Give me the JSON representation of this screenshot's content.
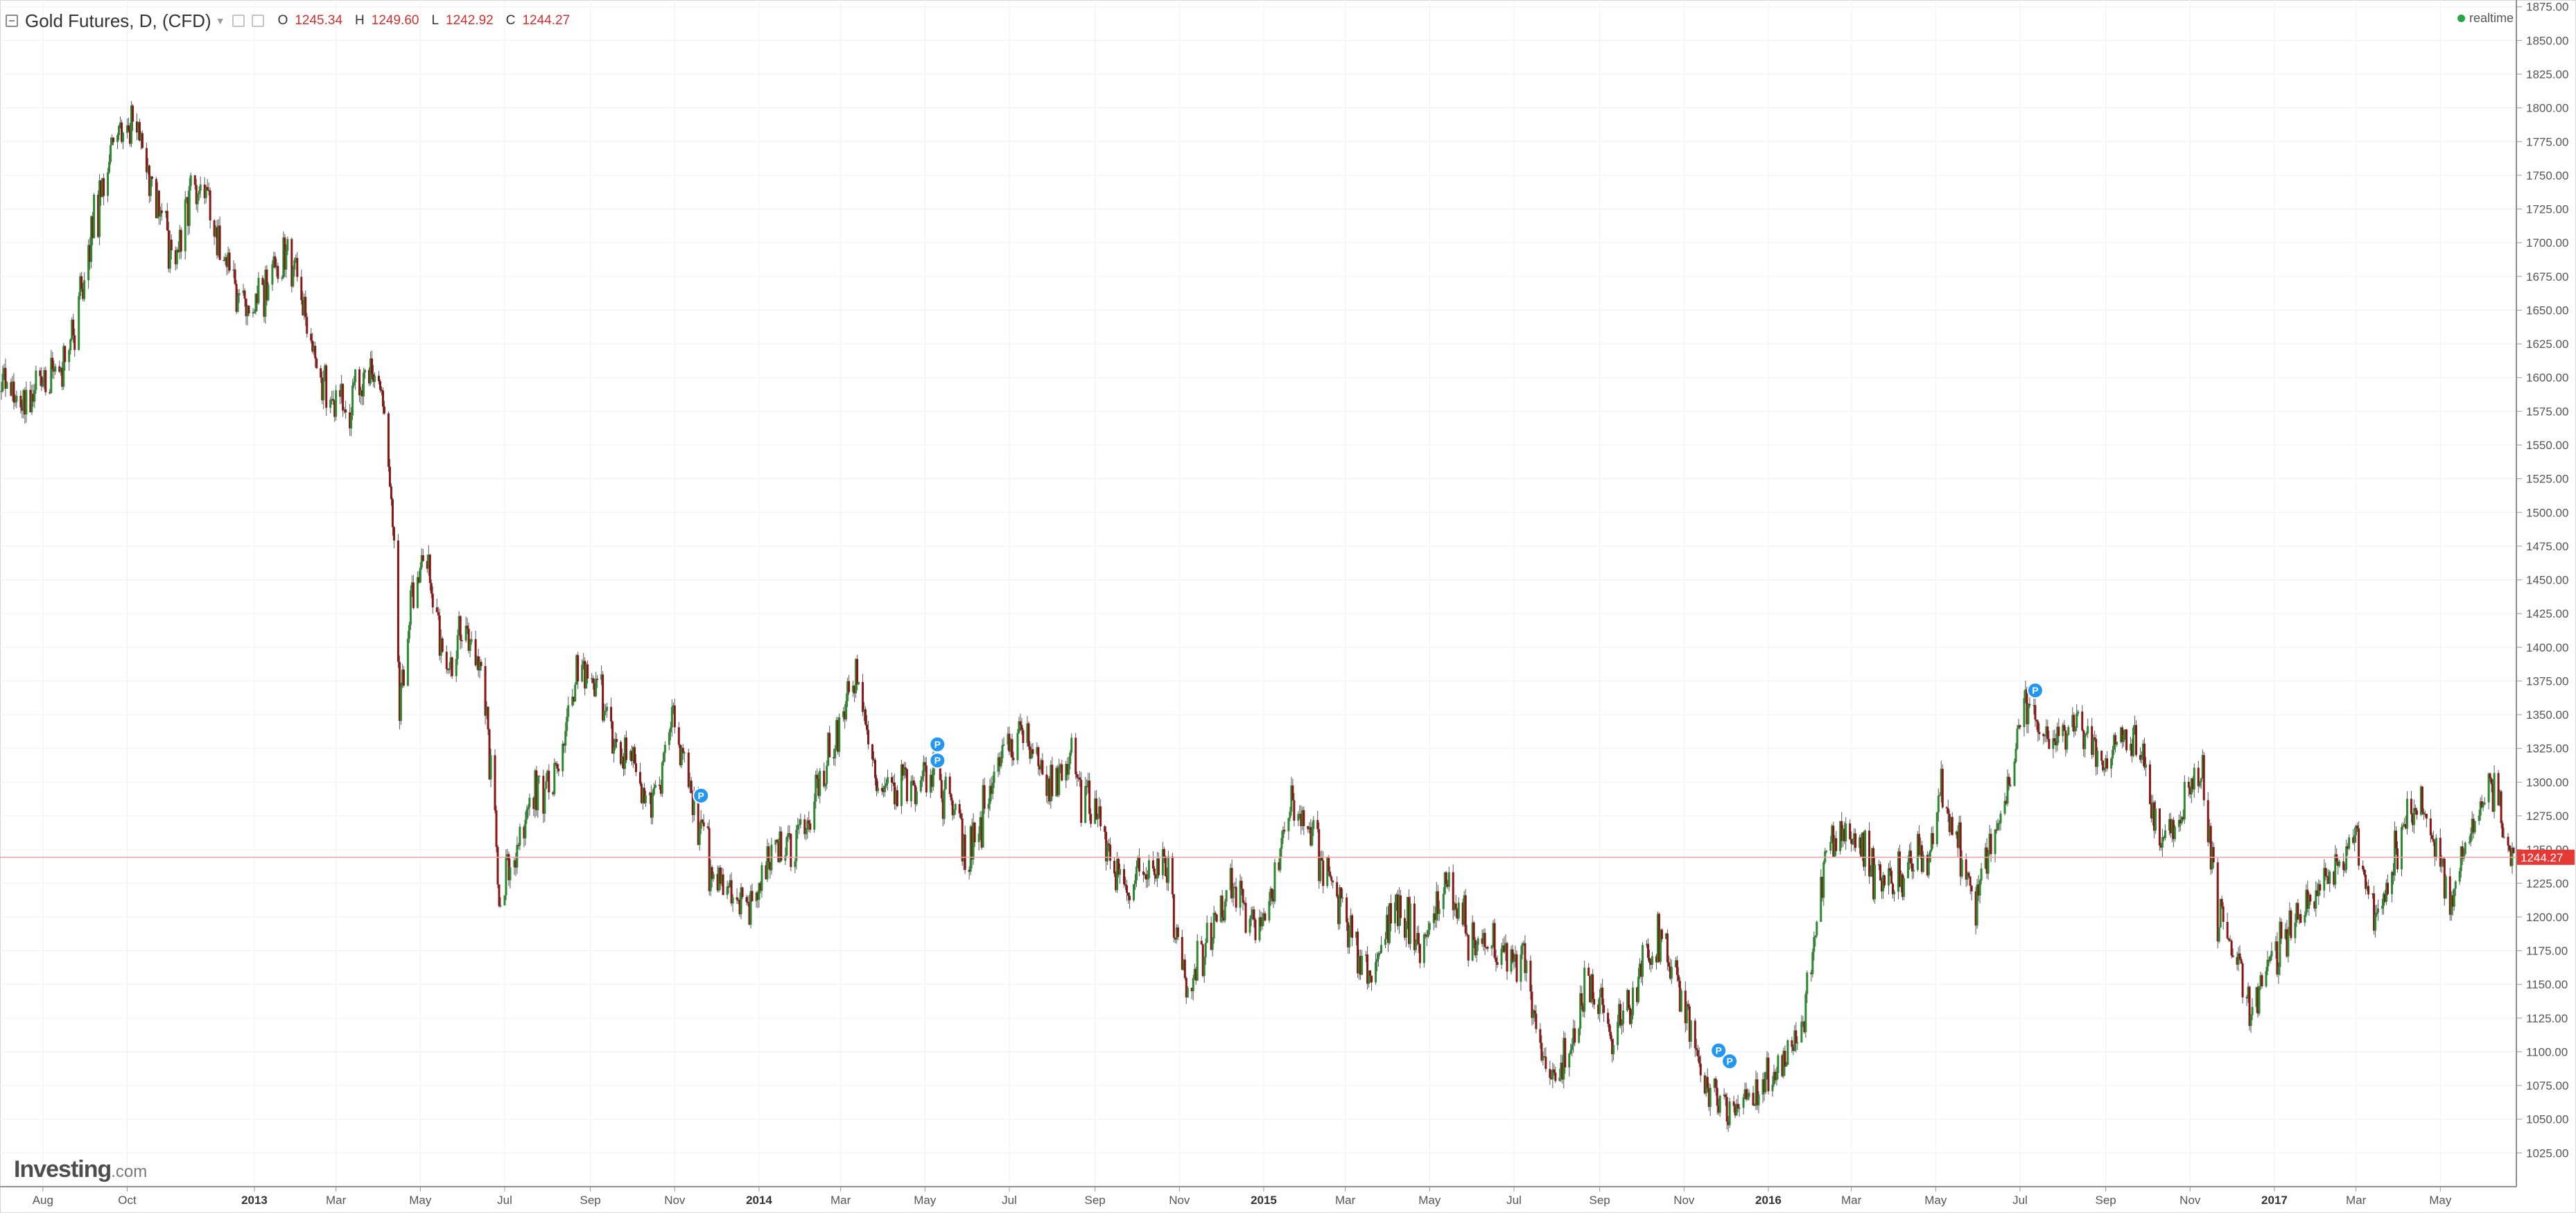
{
  "header": {
    "title": "Gold Futures, D, (CFD)",
    "ohlc": [
      {
        "key": "O",
        "value": "1245.34"
      },
      {
        "key": "H",
        "value": "1249.60"
      },
      {
        "key": "L",
        "value": "1242.92"
      },
      {
        "key": "C",
        "value": "1244.27"
      }
    ],
    "realtime_label": "realtime"
  },
  "branding": {
    "logo_main": "Investing",
    "logo_suffix": ".com"
  },
  "colors": {
    "up": "#2a8a2e",
    "down": "#8b1414",
    "grid": "#f0f0f0",
    "price_line": "#f2a0a0",
    "price_tag": "#e53935",
    "marker": "#2196f3",
    "realtime_dot": "#27a644"
  },
  "chart_data": {
    "type": "candlestick",
    "title": "Gold Futures, D, (CFD)",
    "y_axis": {
      "position": "right",
      "range": [
        1000,
        1880
      ],
      "ticks": [
        "1025.00",
        "1050.00",
        "1075.00",
        "1100.00",
        "1125.00",
        "1150.00",
        "1175.00",
        "1200.00",
        "1225.00",
        "1250.00",
        "1275.00",
        "1300.00",
        "1325.00",
        "1350.00",
        "1375.00",
        "1400.00",
        "1425.00",
        "1450.00",
        "1475.00",
        "1500.00",
        "1525.00",
        "1550.00",
        "1575.00",
        "1600.00",
        "1625.00",
        "1650.00",
        "1675.00",
        "1700.00",
        "1725.00",
        "1750.00",
        "1775.00",
        "1800.00",
        "1825.00",
        "1850.00",
        "1875.00"
      ]
    },
    "x_axis": {
      "range": [
        "2012-07-01",
        "2017-06-25"
      ],
      "ticks": [
        {
          "label": "Aug",
          "date": "2012-08-01"
        },
        {
          "label": "Oct",
          "date": "2012-10-01"
        },
        {
          "label": "2013",
          "date": "2013-01-01",
          "bold": true
        },
        {
          "label": "Mar",
          "date": "2013-03-01"
        },
        {
          "label": "May",
          "date": "2013-05-01"
        },
        {
          "label": "Jul",
          "date": "2013-07-01"
        },
        {
          "label": "Sep",
          "date": "2013-09-01"
        },
        {
          "label": "Nov",
          "date": "2013-11-01"
        },
        {
          "label": "2014",
          "date": "2014-01-01",
          "bold": true
        },
        {
          "label": "Mar",
          "date": "2014-03-01"
        },
        {
          "label": "May",
          "date": "2014-05-01"
        },
        {
          "label": "Jul",
          "date": "2014-07-01"
        },
        {
          "label": "Sep",
          "date": "2014-09-01"
        },
        {
          "label": "Nov",
          "date": "2014-11-01"
        },
        {
          "label": "2015",
          "date": "2015-01-01",
          "bold": true
        },
        {
          "label": "Mar",
          "date": "2015-03-01"
        },
        {
          "label": "May",
          "date": "2015-05-01"
        },
        {
          "label": "Jul",
          "date": "2015-07-01"
        },
        {
          "label": "Sep",
          "date": "2015-09-01"
        },
        {
          "label": "Nov",
          "date": "2015-11-01"
        },
        {
          "label": "2016",
          "date": "2016-01-01",
          "bold": true
        },
        {
          "label": "Mar",
          "date": "2016-03-01"
        },
        {
          "label": "May",
          "date": "2016-05-01"
        },
        {
          "label": "Jul",
          "date": "2016-07-01"
        },
        {
          "label": "Sep",
          "date": "2016-09-01"
        },
        {
          "label": "Nov",
          "date": "2016-11-01"
        },
        {
          "label": "2017",
          "date": "2017-01-01",
          "bold": true
        },
        {
          "label": "Mar",
          "date": "2017-03-01"
        },
        {
          "label": "May",
          "date": "2017-05-01"
        }
      ]
    },
    "grid": true,
    "last_price": "1244.27",
    "price_path": [
      {
        "date": "2012-07-01",
        "price": 1590
      },
      {
        "date": "2012-07-20",
        "price": 1580
      },
      {
        "date": "2012-08-05",
        "price": 1605
      },
      {
        "date": "2012-08-20",
        "price": 1615
      },
      {
        "date": "2012-09-01",
        "price": 1680
      },
      {
        "date": "2012-09-10",
        "price": 1730
      },
      {
        "date": "2012-09-20",
        "price": 1775
      },
      {
        "date": "2012-10-05",
        "price": 1790
      },
      {
        "date": "2012-10-15",
        "price": 1760
      },
      {
        "date": "2012-10-25",
        "price": 1720
      },
      {
        "date": "2012-11-05",
        "price": 1680
      },
      {
        "date": "2012-11-12",
        "price": 1730
      },
      {
        "date": "2012-11-25",
        "price": 1745
      },
      {
        "date": "2012-12-05",
        "price": 1705
      },
      {
        "date": "2012-12-20",
        "price": 1660
      },
      {
        "date": "2013-01-05",
        "price": 1650
      },
      {
        "date": "2013-01-20",
        "price": 1690
      },
      {
        "date": "2013-02-01",
        "price": 1675
      },
      {
        "date": "2013-02-15",
        "price": 1610
      },
      {
        "date": "2013-02-25",
        "price": 1580
      },
      {
        "date": "2013-03-10",
        "price": 1580
      },
      {
        "date": "2013-03-25",
        "price": 1605
      },
      {
        "date": "2013-04-05",
        "price": 1570
      },
      {
        "date": "2013-04-12",
        "price": 1480
      },
      {
        "date": "2013-04-16",
        "price": 1350
      },
      {
        "date": "2013-04-25",
        "price": 1440
      },
      {
        "date": "2013-05-05",
        "price": 1470
      },
      {
        "date": "2013-05-20",
        "price": 1380
      },
      {
        "date": "2013-06-01",
        "price": 1410
      },
      {
        "date": "2013-06-15",
        "price": 1385
      },
      {
        "date": "2013-06-27",
        "price": 1215
      },
      {
        "date": "2013-07-05",
        "price": 1230
      },
      {
        "date": "2013-07-20",
        "price": 1290
      },
      {
        "date": "2013-08-05",
        "price": 1300
      },
      {
        "date": "2013-08-25",
        "price": 1395
      },
      {
        "date": "2013-09-10",
        "price": 1360
      },
      {
        "date": "2013-09-20",
        "price": 1320
      },
      {
        "date": "2013-10-05",
        "price": 1310
      },
      {
        "date": "2013-10-15",
        "price": 1275
      },
      {
        "date": "2013-10-30",
        "price": 1350
      },
      {
        "date": "2013-11-15",
        "price": 1285
      },
      {
        "date": "2013-12-01",
        "price": 1225
      },
      {
        "date": "2013-12-20",
        "price": 1200
      },
      {
        "date": "2014-01-10",
        "price": 1240
      },
      {
        "date": "2014-02-01",
        "price": 1265
      },
      {
        "date": "2014-02-20",
        "price": 1320
      },
      {
        "date": "2014-03-12",
        "price": 1380
      },
      {
        "date": "2014-03-28",
        "price": 1295
      },
      {
        "date": "2014-04-15",
        "price": 1300
      },
      {
        "date": "2014-05-05",
        "price": 1305
      },
      {
        "date": "2014-05-20",
        "price": 1290
      },
      {
        "date": "2014-06-02",
        "price": 1245
      },
      {
        "date": "2014-06-25",
        "price": 1320
      },
      {
        "date": "2014-07-10",
        "price": 1335
      },
      {
        "date": "2014-07-28",
        "price": 1300
      },
      {
        "date": "2014-08-15",
        "price": 1310
      },
      {
        "date": "2014-09-05",
        "price": 1265
      },
      {
        "date": "2014-09-25",
        "price": 1220
      },
      {
        "date": "2014-10-20",
        "price": 1245
      },
      {
        "date": "2014-11-06",
        "price": 1145
      },
      {
        "date": "2014-11-25",
        "price": 1195
      },
      {
        "date": "2014-12-10",
        "price": 1225
      },
      {
        "date": "2014-12-30",
        "price": 1185
      },
      {
        "date": "2015-01-20",
        "price": 1290
      },
      {
        "date": "2015-02-05",
        "price": 1260
      },
      {
        "date": "2015-02-25",
        "price": 1210
      },
      {
        "date": "2015-03-18",
        "price": 1150
      },
      {
        "date": "2015-04-05",
        "price": 1210
      },
      {
        "date": "2015-04-25",
        "price": 1180
      },
      {
        "date": "2015-05-15",
        "price": 1220
      },
      {
        "date": "2015-06-05",
        "price": 1175
      },
      {
        "date": "2015-06-25",
        "price": 1180
      },
      {
        "date": "2015-07-10",
        "price": 1160
      },
      {
        "date": "2015-07-24",
        "price": 1085
      },
      {
        "date": "2015-08-10",
        "price": 1090
      },
      {
        "date": "2015-08-24",
        "price": 1160
      },
      {
        "date": "2015-09-10",
        "price": 1110
      },
      {
        "date": "2015-09-25",
        "price": 1145
      },
      {
        "date": "2015-10-14",
        "price": 1185
      },
      {
        "date": "2015-10-30",
        "price": 1140
      },
      {
        "date": "2015-11-15",
        "price": 1080
      },
      {
        "date": "2015-12-03",
        "price": 1055
      },
      {
        "date": "2015-12-18",
        "price": 1065
      },
      {
        "date": "2016-01-05",
        "price": 1085
      },
      {
        "date": "2016-01-25",
        "price": 1115
      },
      {
        "date": "2016-02-11",
        "price": 1245
      },
      {
        "date": "2016-03-01",
        "price": 1270
      },
      {
        "date": "2016-03-15",
        "price": 1235
      },
      {
        "date": "2016-04-05",
        "price": 1230
      },
      {
        "date": "2016-04-25",
        "price": 1250
      },
      {
        "date": "2016-05-05",
        "price": 1295
      },
      {
        "date": "2016-05-30",
        "price": 1210
      },
      {
        "date": "2016-06-20",
        "price": 1290
      },
      {
        "date": "2016-07-06",
        "price": 1365
      },
      {
        "date": "2016-07-25",
        "price": 1320
      },
      {
        "date": "2016-08-10",
        "price": 1350
      },
      {
        "date": "2016-08-30",
        "price": 1310
      },
      {
        "date": "2016-09-10",
        "price": 1335
      },
      {
        "date": "2016-09-25",
        "price": 1330
      },
      {
        "date": "2016-10-05",
        "price": 1265
      },
      {
        "date": "2016-10-20",
        "price": 1260
      },
      {
        "date": "2016-11-09",
        "price": 1310
      },
      {
        "date": "2016-11-20",
        "price": 1205
      },
      {
        "date": "2016-12-05",
        "price": 1170
      },
      {
        "date": "2016-12-15",
        "price": 1130
      },
      {
        "date": "2017-01-05",
        "price": 1180
      },
      {
        "date": "2017-01-25",
        "price": 1215
      },
      {
        "date": "2017-02-15",
        "price": 1240
      },
      {
        "date": "2017-03-01",
        "price": 1255
      },
      {
        "date": "2017-03-14",
        "price": 1200
      },
      {
        "date": "2017-04-01",
        "price": 1250
      },
      {
        "date": "2017-04-17",
        "price": 1290
      },
      {
        "date": "2017-05-09",
        "price": 1215
      },
      {
        "date": "2017-05-25",
        "price": 1265
      },
      {
        "date": "2017-06-06",
        "price": 1295
      },
      {
        "date": "2017-06-25",
        "price": 1244
      }
    ],
    "event_markers": [
      {
        "label": "P",
        "date": "2013-11-20",
        "price": 1290
      },
      {
        "label": "P",
        "date": "2014-05-10",
        "price": 1328
      },
      {
        "label": "P",
        "date": "2014-05-10",
        "price": 1316
      },
      {
        "label": "P",
        "date": "2015-11-26",
        "price": 1101
      },
      {
        "label": "P",
        "date": "2015-12-04",
        "price": 1093
      },
      {
        "label": "P",
        "date": "2016-07-12",
        "price": 1368
      }
    ]
  }
}
